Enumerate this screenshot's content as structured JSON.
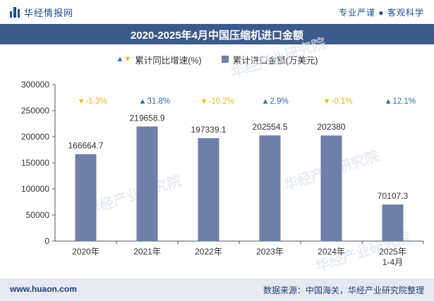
{
  "header": {
    "brand_name": "华经情报网",
    "slogan": "专业严谨 ● 客观科学"
  },
  "footer": {
    "website": "www.huaon.com",
    "source": "数据来源：中国海关，华经产业研究院整理"
  },
  "watermark": "华经产业研究院",
  "colors": {
    "bar": "#6e7fa8",
    "up": "#2f6da6",
    "down": "#f2b90f",
    "title_bg": "#3c5a8a"
  },
  "chart_data": {
    "type": "bar",
    "title": "2020-2025年4月中国压缩机进口金额",
    "categories": [
      "2020年",
      "2021年",
      "2022年",
      "2023年",
      "2024年",
      "2025年\n1-4月"
    ],
    "series": [
      {
        "name": "累计进口金额(万美元)",
        "values": [
          166664.7,
          219658.9,
          197339.1,
          202554.5,
          202380,
          70107.3
        ]
      }
    ],
    "value_labels": [
      "166664.7",
      "219658.9",
      "197339.1",
      "202554.5",
      "202380",
      "70107.3"
    ],
    "growth": {
      "name": "累计同比增速(%)",
      "values": [
        -1.3,
        31.8,
        -10.2,
        2.9,
        -0.1,
        12.1
      ],
      "labels": [
        "-1.3%",
        "31.8%",
        "-10.2%",
        "2.9%",
        "-0.1%",
        "12.1%"
      ]
    },
    "ylim": [
      0,
      300000
    ],
    "yticks": [
      0,
      50000,
      100000,
      150000,
      200000,
      250000,
      300000
    ],
    "grid": false,
    "legend_position": "top-center"
  }
}
